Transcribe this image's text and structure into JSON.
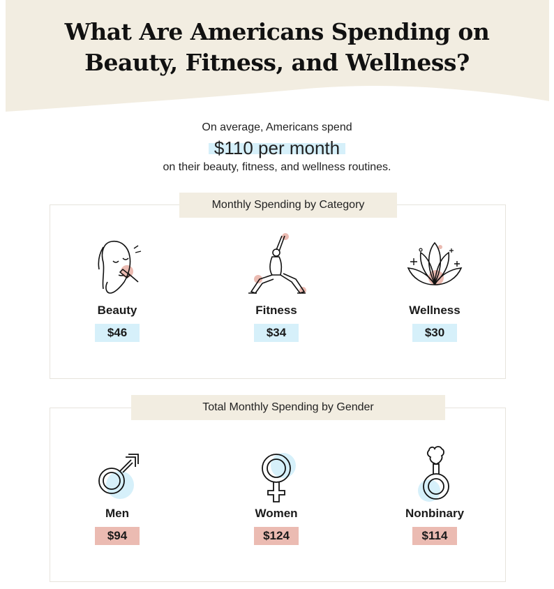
{
  "header": {
    "title_line1": "What Are Americans Spending on",
    "title_line2": "Beauty, Fitness, and Wellness?",
    "bg_color": "#f2ede1"
  },
  "intro": {
    "line1": "On average, Americans spend",
    "highlight": "$110 per month",
    "line3": "on their beauty, fitness, and wellness routines."
  },
  "category_section": {
    "label": "Monthly Spending by Category",
    "items": [
      {
        "name": "Beauty",
        "value": "$46",
        "icon": "face-brush-icon"
      },
      {
        "name": "Fitness",
        "value": "$34",
        "icon": "yoga-pose-icon"
      },
      {
        "name": "Wellness",
        "value": "$30",
        "icon": "lotus-icon"
      }
    ],
    "value_color": "#d6f0fa"
  },
  "gender_section": {
    "label": "Total Monthly Spending by Gender",
    "items": [
      {
        "name": "Men",
        "value": "$94",
        "icon": "male-symbol-icon"
      },
      {
        "name": "Women",
        "value": "$124",
        "icon": "female-symbol-icon"
      },
      {
        "name": "Nonbinary",
        "value": "$114",
        "icon": "nonbinary-symbol-icon"
      }
    ],
    "value_color": "#ebbbb2"
  }
}
